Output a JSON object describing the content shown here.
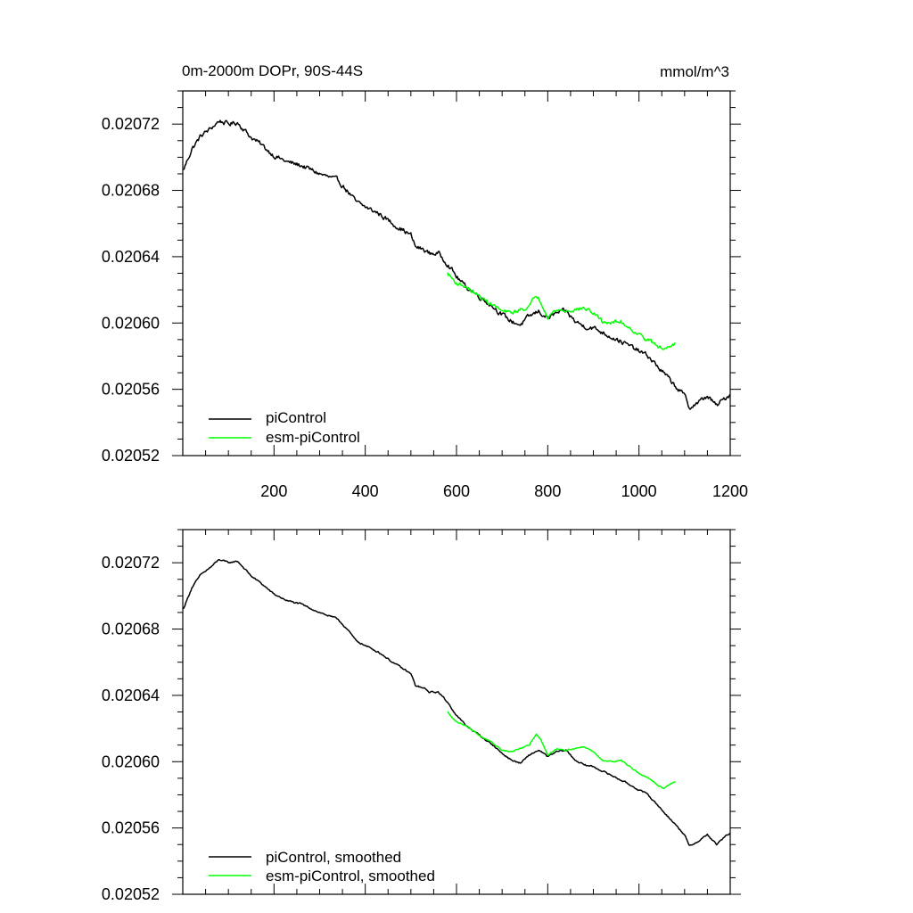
{
  "chart_data": [
    {
      "type": "line",
      "title_left": "0m-2000m DOPr, 90S-44S",
      "title_right": "mmol/m^3",
      "xlim": [
        0,
        1200
      ],
      "ylim": [
        0.02052,
        0.02074
      ],
      "x_ticks": [
        200,
        400,
        600,
        800,
        1000,
        1200
      ],
      "x_tick_labels": [
        "200",
        "400",
        "600",
        "800",
        "1000",
        "1200"
      ],
      "y_ticks": [
        0.02052,
        0.02056,
        0.0206,
        0.02064,
        0.02068,
        0.02072
      ],
      "y_tick_labels": [
        "0.02052",
        "0.02056",
        "0.02060",
        "0.02064",
        "0.02068",
        "0.02072"
      ],
      "series": [
        {
          "name": "piControl",
          "color": "#000000",
          "x": [
            1,
            20,
            40,
            60,
            80,
            100,
            120,
            130,
            150,
            170,
            200,
            230,
            260,
            300,
            340,
            360,
            380,
            400,
            430,
            460,
            500,
            510,
            530,
            540,
            560,
            580,
            600,
            620,
            650,
            680,
            700,
            720,
            740,
            760,
            780,
            800,
            820,
            840,
            860,
            880,
            900,
            930,
            960,
            1000,
            1020,
            1040,
            1060,
            1080,
            1100,
            1110,
            1130,
            1150,
            1170,
            1190,
            1200
          ],
          "values": [
            0.020692,
            0.020705,
            0.020713,
            0.020717,
            0.020722,
            0.02072,
            0.020721,
            0.020718,
            0.020712,
            0.020708,
            0.020701,
            0.020697,
            0.020695,
            0.02069,
            0.020686,
            0.02068,
            0.020673,
            0.02067,
            0.020666,
            0.02066,
            0.020653,
            0.020646,
            0.020644,
            0.020642,
            0.020642,
            0.020636,
            0.020628,
            0.020622,
            0.020616,
            0.02061,
            0.020605,
            0.020601,
            0.020599,
            0.020604,
            0.020607,
            0.020603,
            0.020606,
            0.020607,
            0.020601,
            0.020598,
            0.020597,
            0.020593,
            0.020589,
            0.020583,
            0.02058,
            0.020574,
            0.020568,
            0.020562,
            0.020556,
            0.020549,
            0.020552,
            0.020556,
            0.02055,
            0.020555,
            0.020557
          ],
          "noise": 1.2e-06
        },
        {
          "name": "esm-piControl",
          "color": "#00ff00",
          "x": [
            580,
            600,
            620,
            640,
            660,
            680,
            700,
            720,
            740,
            760,
            775,
            785,
            800,
            820,
            840,
            860,
            880,
            900,
            920,
            940,
            960,
            980,
            1000,
            1020,
            1040,
            1055,
            1070,
            1080
          ],
          "values": [
            0.02063,
            0.020624,
            0.020622,
            0.020618,
            0.020614,
            0.020611,
            0.020607,
            0.020606,
            0.020608,
            0.02061,
            0.020617,
            0.020613,
            0.020604,
            0.020608,
            0.020607,
            0.020608,
            0.020609,
            0.020606,
            0.020601,
            0.0206,
            0.020601,
            0.020597,
            0.020593,
            0.02059,
            0.020586,
            0.020584,
            0.020587,
            0.020588
          ],
          "noise": 1e-06
        }
      ],
      "legend": [
        "piControl",
        "esm-piControl"
      ],
      "legend_position": "bottom-left"
    },
    {
      "type": "line",
      "xlim": [
        0,
        1200
      ],
      "ylim": [
        0.02052,
        0.02074
      ],
      "x_ticks": [
        200,
        400,
        600,
        800,
        1000,
        1200
      ],
      "y_ticks": [
        0.02052,
        0.02056,
        0.0206,
        0.02064,
        0.02068,
        0.02072
      ],
      "y_tick_labels": [
        "0.02052",
        "0.02056",
        "0.02060",
        "0.02064",
        "0.02068",
        "0.02072"
      ],
      "series": [
        {
          "name": "piControl, smoothed",
          "color": "#000000",
          "x": [
            1,
            20,
            40,
            60,
            80,
            100,
            120,
            130,
            150,
            170,
            200,
            230,
            260,
            300,
            340,
            360,
            380,
            400,
            430,
            460,
            500,
            510,
            530,
            540,
            560,
            580,
            600,
            620,
            650,
            680,
            700,
            720,
            740,
            760,
            780,
            800,
            820,
            840,
            860,
            880,
            900,
            930,
            960,
            1000,
            1020,
            1040,
            1060,
            1080,
            1100,
            1110,
            1130,
            1150,
            1170,
            1190,
            1200
          ],
          "values": [
            0.020692,
            0.020705,
            0.020713,
            0.020717,
            0.020722,
            0.02072,
            0.020721,
            0.020718,
            0.020712,
            0.020708,
            0.020701,
            0.020697,
            0.020695,
            0.02069,
            0.020686,
            0.02068,
            0.020673,
            0.02067,
            0.020666,
            0.02066,
            0.020653,
            0.020646,
            0.020644,
            0.020642,
            0.020642,
            0.020636,
            0.020628,
            0.020622,
            0.020616,
            0.02061,
            0.020605,
            0.020601,
            0.020599,
            0.020604,
            0.020607,
            0.020603,
            0.020606,
            0.020607,
            0.020601,
            0.020598,
            0.020597,
            0.020593,
            0.020589,
            0.020583,
            0.02058,
            0.020574,
            0.020568,
            0.020562,
            0.020556,
            0.020549,
            0.020552,
            0.020556,
            0.02055,
            0.020555,
            0.020557
          ],
          "noise": 4e-07
        },
        {
          "name": "esm-piControl, smoothed",
          "color": "#00ff00",
          "x": [
            580,
            600,
            620,
            640,
            660,
            680,
            700,
            720,
            740,
            760,
            775,
            785,
            800,
            820,
            840,
            860,
            880,
            900,
            920,
            940,
            960,
            980,
            1000,
            1020,
            1040,
            1055,
            1070,
            1080
          ],
          "values": [
            0.02063,
            0.020624,
            0.020622,
            0.020618,
            0.020614,
            0.020611,
            0.020607,
            0.020606,
            0.020608,
            0.02061,
            0.020617,
            0.020613,
            0.020604,
            0.020608,
            0.020607,
            0.020608,
            0.020609,
            0.020606,
            0.020601,
            0.0206,
            0.020601,
            0.020597,
            0.020593,
            0.02059,
            0.020586,
            0.020584,
            0.020587,
            0.020588
          ],
          "noise": 3e-07
        }
      ],
      "legend": [
        "piControl, smoothed",
        "esm-piControl, smoothed"
      ],
      "legend_position": "bottom-left"
    }
  ]
}
